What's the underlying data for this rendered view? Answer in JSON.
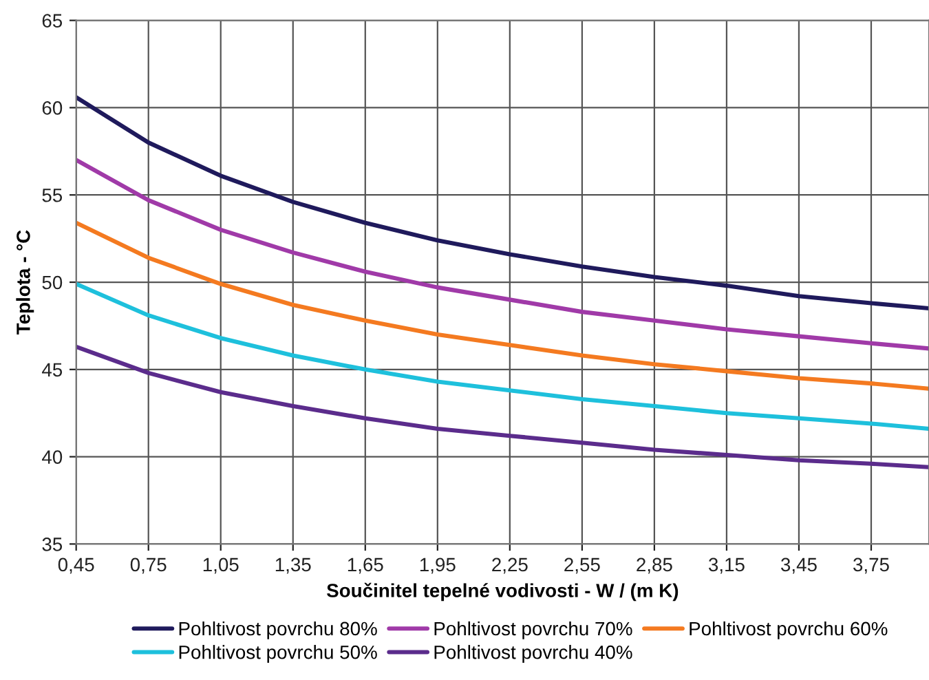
{
  "chart_data": {
    "type": "line",
    "xlabel": "Součinitel tepelné vodivosti - W / (m K)",
    "ylabel": "Teplota - °C",
    "x": [
      0.45,
      0.75,
      1.05,
      1.35,
      1.65,
      1.95,
      2.25,
      2.55,
      2.85,
      3.15,
      3.45,
      3.75,
      3.99
    ],
    "series": [
      {
        "name": "Pohltivost povrchu 80%",
        "color": "#1f1a5c",
        "values": [
          60.6,
          58.0,
          56.1,
          54.6,
          53.4,
          52.4,
          51.6,
          50.9,
          50.3,
          49.8,
          49.2,
          48.8,
          48.5
        ]
      },
      {
        "name": "Pohltivost povrchu 70%",
        "color": "#a03aa8",
        "values": [
          57.0,
          54.7,
          53.0,
          51.7,
          50.6,
          49.7,
          49.0,
          48.3,
          47.8,
          47.3,
          46.9,
          46.5,
          46.2
        ]
      },
      {
        "name": "Pohltivost povrchu 60%",
        "color": "#f47a20",
        "values": [
          53.4,
          51.4,
          49.9,
          48.7,
          47.8,
          47.0,
          46.4,
          45.8,
          45.3,
          44.9,
          44.5,
          44.2,
          43.9
        ]
      },
      {
        "name": "Pohltivost povrchu 50%",
        "color": "#1ec0dc",
        "values": [
          49.9,
          48.1,
          46.8,
          45.8,
          45.0,
          44.3,
          43.8,
          43.3,
          42.9,
          42.5,
          42.2,
          41.9,
          41.6
        ]
      },
      {
        "name": "Pohltivost povrchu 40%",
        "color": "#5b2c8c",
        "values": [
          46.3,
          44.8,
          43.7,
          42.9,
          42.2,
          41.6,
          41.2,
          40.8,
          40.4,
          40.1,
          39.8,
          39.6,
          39.4
        ]
      }
    ],
    "xlim": [
      0.45,
      3.99
    ],
    "xticks": [
      {
        "value": 0.45,
        "label": "0,45"
      },
      {
        "value": 0.75,
        "label": "0,75"
      },
      {
        "value": 1.05,
        "label": "1,05"
      },
      {
        "value": 1.35,
        "label": "1,35"
      },
      {
        "value": 1.65,
        "label": "1,65"
      },
      {
        "value": 1.95,
        "label": "1,95"
      },
      {
        "value": 2.25,
        "label": "2,25"
      },
      {
        "value": 2.55,
        "label": "2,55"
      },
      {
        "value": 2.85,
        "label": "2,85"
      },
      {
        "value": 3.15,
        "label": "3,15"
      },
      {
        "value": 3.45,
        "label": "3,45"
      },
      {
        "value": 3.75,
        "label": "3,75"
      }
    ],
    "ylim": [
      35,
      65
    ],
    "yticks": [
      35,
      40,
      45,
      50,
      55,
      60,
      65
    ],
    "grid": true,
    "legend": "bottom",
    "marker": "none",
    "line_style": "solid"
  }
}
